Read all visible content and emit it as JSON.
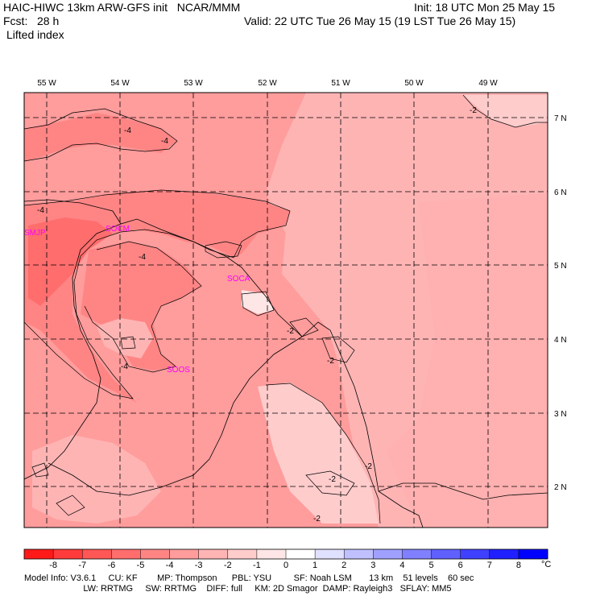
{
  "header": {
    "model_line": "HAIC-HIWC 13km ARW-GFS init   NCAR/MMM",
    "fcst_line": "Fcst:   28 h",
    "variable": "Lifted index",
    "init_line": "Init: 18 UTC Mon 25 May 15",
    "valid_line": "Valid: 22 UTC Tue 26 May 15 (19 LST Tue 26 May 15)"
  },
  "map": {
    "lon_labels": [
      "55 W",
      "54 W",
      "53 W",
      "52 W",
      "51 W",
      "50 W",
      "49 W"
    ],
    "lat_labels": [
      "7 N",
      "6 N",
      "5 N",
      "4 N",
      "3 N",
      "2 N"
    ],
    "stations": [
      "SMJP",
      "SOCM",
      "SOCA",
      "SOOS"
    ],
    "contour_labels": [
      "-4",
      "-4",
      "-4",
      "-4",
      "-4",
      "-2",
      "-2",
      "-2",
      "-2",
      "-2",
      "-2"
    ]
  },
  "colorbar": {
    "unit": "°C",
    "ticks": [
      "-8",
      "-7",
      "-6",
      "-5",
      "-4",
      "-3",
      "-2",
      "-1",
      "0",
      "1",
      "2",
      "3",
      "4",
      "5",
      "6",
      "7",
      "8"
    ],
    "colors": [
      "#ff1a1a",
      "#ff3b3b",
      "#ff5656",
      "#ff6d6d",
      "#ff8585",
      "#ff9c9c",
      "#ffb4b4",
      "#ffcccc",
      "#ffe6e6",
      "#ffffff",
      "#e0e0ff",
      "#c0c0ff",
      "#a0a0ff",
      "#8080ff",
      "#6060ff",
      "#4040ff",
      "#2020ff",
      "#0000ff"
    ]
  },
  "footer": {
    "line1": "Model Info: V3.6.1     CU: KF        MP: Thompson      PBL: YSU         SF: Noah LSM       13 km    51 levels    60 sec",
    "line2": "                        LW: RRTMG     SW: RRTMG    DIFF: full     KM: 2D Smagor  DAMP: Rayleigh3   SFLAY: MM5"
  }
}
